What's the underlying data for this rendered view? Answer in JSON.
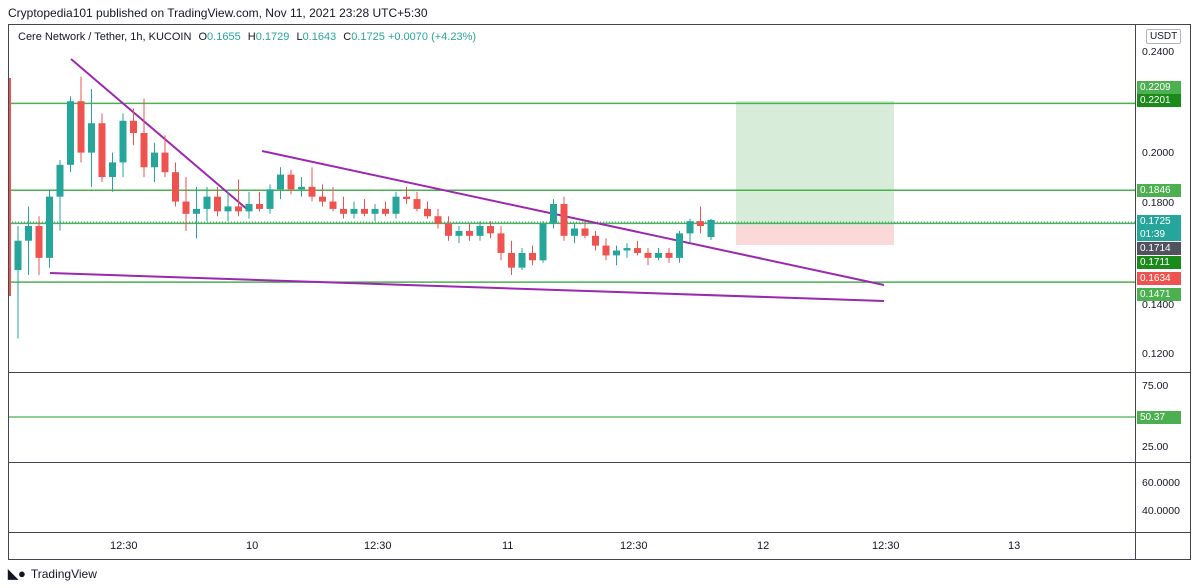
{
  "header": {
    "published": "Cryptopedia101 published on TradingView.com, Nov 11, 2021 23:28 UTC+5:30"
  },
  "legend": {
    "symbol": "Cere Network / Tether, 1h, KUCOIN",
    "o_label": "O",
    "o": "0.1655",
    "h_label": "H",
    "h": "0.1729",
    "l_label": "L",
    "l": "0.1643",
    "c_label": "C",
    "c": "0.1725",
    "change": "+0.0070 (+4.23%)"
  },
  "price_axis": {
    "currency": "USDT",
    "ticks": [
      "0.2400",
      "0.2000",
      "0.1800",
      "0.1400",
      "0.1200"
    ]
  },
  "price_labels": [
    {
      "text": "0.2209",
      "color": "#4caf50"
    },
    {
      "text": "0.2201",
      "color": "#1b8a1b"
    },
    {
      "text": "0.1846",
      "color": "#4caf50"
    },
    {
      "text": "0.1725",
      "color": "#26a69a"
    },
    {
      "text": "01:39",
      "color": "#26a69a"
    },
    {
      "text": "0.1714",
      "color": "#50535e"
    },
    {
      "text": "0.1711",
      "color": "#1b8a1b"
    },
    {
      "text": "0.1634",
      "color": "#ef5350"
    },
    {
      "text": "0.1471",
      "color": "#4caf50"
    }
  ],
  "rsi_axis": {
    "ticks": [
      "75.00",
      "25.00"
    ],
    "level_label": "50.37",
    "level_color": "#4caf50"
  },
  "osc_axis": {
    "ticks": [
      "60.0000",
      "40.0000"
    ]
  },
  "time_axis": {
    "ticks": [
      "12:30",
      "10",
      "12:30",
      "11",
      "12:30",
      "12",
      "12:30",
      "13"
    ]
  },
  "footer": {
    "brand": "TradingView"
  },
  "colors": {
    "up": "#26a69a",
    "down": "#ef5350",
    "trendline": "#9c27b0",
    "level": "#4caf50"
  },
  "chart_data": {
    "type": "candlestick",
    "title": "Cere Network / Tether, 1h, KUCOIN",
    "ylim": [
      0.112,
      0.246
    ],
    "levels": [
      0.2201,
      0.1846,
      0.1711,
      0.1471
    ],
    "candles": [
      {
        "o": 0.152,
        "h": 0.17,
        "l": 0.124,
        "c": 0.164
      },
      {
        "o": 0.164,
        "h": 0.178,
        "l": 0.15,
        "c": 0.17
      },
      {
        "o": 0.17,
        "h": 0.174,
        "l": 0.15,
        "c": 0.157
      },
      {
        "o": 0.157,
        "h": 0.185,
        "l": 0.153,
        "c": 0.182
      },
      {
        "o": 0.182,
        "h": 0.197,
        "l": 0.168,
        "c": 0.195
      },
      {
        "o": 0.195,
        "h": 0.223,
        "l": 0.192,
        "c": 0.221
      },
      {
        "o": 0.221,
        "h": 0.231,
        "l": 0.196,
        "c": 0.2
      },
      {
        "o": 0.2,
        "h": 0.226,
        "l": 0.186,
        "c": 0.212
      },
      {
        "o": 0.212,
        "h": 0.216,
        "l": 0.188,
        "c": 0.19
      },
      {
        "o": 0.19,
        "h": 0.2,
        "l": 0.184,
        "c": 0.196
      },
      {
        "o": 0.196,
        "h": 0.216,
        "l": 0.19,
        "c": 0.213
      },
      {
        "o": 0.213,
        "h": 0.218,
        "l": 0.203,
        "c": 0.208
      },
      {
        "o": 0.208,
        "h": 0.222,
        "l": 0.19,
        "c": 0.194
      },
      {
        "o": 0.194,
        "h": 0.204,
        "l": 0.188,
        "c": 0.2
      },
      {
        "o": 0.2,
        "h": 0.207,
        "l": 0.19,
        "c": 0.192
      },
      {
        "o": 0.192,
        "h": 0.196,
        "l": 0.178,
        "c": 0.18
      },
      {
        "o": 0.18,
        "h": 0.19,
        "l": 0.168,
        "c": 0.175
      },
      {
        "o": 0.175,
        "h": 0.186,
        "l": 0.165,
        "c": 0.177
      },
      {
        "o": 0.177,
        "h": 0.186,
        "l": 0.172,
        "c": 0.182
      },
      {
        "o": 0.182,
        "h": 0.186,
        "l": 0.174,
        "c": 0.176
      },
      {
        "o": 0.176,
        "h": 0.184,
        "l": 0.172,
        "c": 0.178
      },
      {
        "o": 0.178,
        "h": 0.189,
        "l": 0.174,
        "c": 0.176
      },
      {
        "o": 0.176,
        "h": 0.184,
        "l": 0.173,
        "c": 0.179
      },
      {
        "o": 0.179,
        "h": 0.184,
        "l": 0.176,
        "c": 0.177
      },
      {
        "o": 0.177,
        "h": 0.187,
        "l": 0.175,
        "c": 0.185
      },
      {
        "o": 0.185,
        "h": 0.194,
        "l": 0.181,
        "c": 0.191
      },
      {
        "o": 0.191,
        "h": 0.193,
        "l": 0.183,
        "c": 0.185
      },
      {
        "o": 0.185,
        "h": 0.19,
        "l": 0.182,
        "c": 0.186
      },
      {
        "o": 0.186,
        "h": 0.194,
        "l": 0.18,
        "c": 0.182
      },
      {
        "o": 0.182,
        "h": 0.187,
        "l": 0.178,
        "c": 0.18
      },
      {
        "o": 0.18,
        "h": 0.186,
        "l": 0.176,
        "c": 0.177
      },
      {
        "o": 0.177,
        "h": 0.182,
        "l": 0.173,
        "c": 0.175
      },
      {
        "o": 0.175,
        "h": 0.18,
        "l": 0.173,
        "c": 0.177
      },
      {
        "o": 0.177,
        "h": 0.181,
        "l": 0.174,
        "c": 0.175
      },
      {
        "o": 0.175,
        "h": 0.179,
        "l": 0.172,
        "c": 0.177
      },
      {
        "o": 0.177,
        "h": 0.18,
        "l": 0.174,
        "c": 0.175
      },
      {
        "o": 0.175,
        "h": 0.184,
        "l": 0.173,
        "c": 0.182
      },
      {
        "o": 0.182,
        "h": 0.186,
        "l": 0.179,
        "c": 0.181
      },
      {
        "o": 0.181,
        "h": 0.184,
        "l": 0.176,
        "c": 0.177
      },
      {
        "o": 0.177,
        "h": 0.18,
        "l": 0.173,
        "c": 0.174
      },
      {
        "o": 0.174,
        "h": 0.177,
        "l": 0.169,
        "c": 0.171
      },
      {
        "o": 0.171,
        "h": 0.174,
        "l": 0.164,
        "c": 0.166
      },
      {
        "o": 0.166,
        "h": 0.17,
        "l": 0.163,
        "c": 0.168
      },
      {
        "o": 0.168,
        "h": 0.171,
        "l": 0.164,
        "c": 0.166
      },
      {
        "o": 0.166,
        "h": 0.172,
        "l": 0.164,
        "c": 0.17
      },
      {
        "o": 0.17,
        "h": 0.172,
        "l": 0.165,
        "c": 0.167
      },
      {
        "o": 0.167,
        "h": 0.17,
        "l": 0.156,
        "c": 0.159
      },
      {
        "o": 0.159,
        "h": 0.164,
        "l": 0.15,
        "c": 0.153
      },
      {
        "o": 0.153,
        "h": 0.161,
        "l": 0.152,
        "c": 0.159
      },
      {
        "o": 0.159,
        "h": 0.162,
        "l": 0.154,
        "c": 0.156
      },
      {
        "o": 0.156,
        "h": 0.172,
        "l": 0.155,
        "c": 0.171
      },
      {
        "o": 0.171,
        "h": 0.181,
        "l": 0.169,
        "c": 0.179
      },
      {
        "o": 0.179,
        "h": 0.182,
        "l": 0.164,
        "c": 0.166
      },
      {
        "o": 0.166,
        "h": 0.171,
        "l": 0.163,
        "c": 0.169
      },
      {
        "o": 0.169,
        "h": 0.172,
        "l": 0.165,
        "c": 0.166
      },
      {
        "o": 0.166,
        "h": 0.168,
        "l": 0.16,
        "c": 0.162
      },
      {
        "o": 0.162,
        "h": 0.165,
        "l": 0.156,
        "c": 0.158
      },
      {
        "o": 0.158,
        "h": 0.162,
        "l": 0.154,
        "c": 0.16
      },
      {
        "o": 0.16,
        "h": 0.163,
        "l": 0.157,
        "c": 0.161
      },
      {
        "o": 0.161,
        "h": 0.164,
        "l": 0.158,
        "c": 0.159
      },
      {
        "o": 0.159,
        "h": 0.161,
        "l": 0.154,
        "c": 0.157
      },
      {
        "o": 0.157,
        "h": 0.161,
        "l": 0.156,
        "c": 0.159
      },
      {
        "o": 0.159,
        "h": 0.161,
        "l": 0.155,
        "c": 0.157
      },
      {
        "o": 0.157,
        "h": 0.168,
        "l": 0.155,
        "c": 0.167
      },
      {
        "o": 0.167,
        "h": 0.173,
        "l": 0.163,
        "c": 0.172
      },
      {
        "o": 0.172,
        "h": 0.178,
        "l": 0.167,
        "c": 0.17
      },
      {
        "o": 0.1655,
        "h": 0.1729,
        "l": 0.1643,
        "c": 0.1725
      }
    ]
  }
}
